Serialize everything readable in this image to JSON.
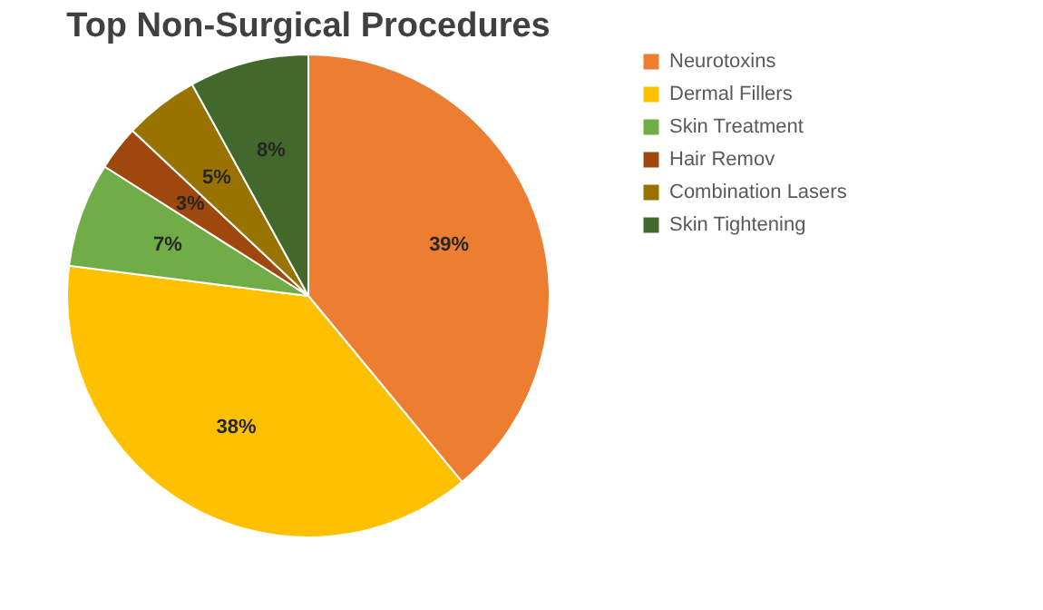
{
  "chart_data": {
    "type": "pie",
    "title": "Top Non-Surgical Procedures",
    "categories": [
      "Neurotoxins",
      "Dermal Fillers",
      "Skin Treatment",
      "Hair Remov",
      "Combination Lasers",
      "Skin Tightening"
    ],
    "values": [
      39,
      38,
      7,
      3,
      5,
      8
    ],
    "colors": [
      "#ed7d31",
      "#ffc000",
      "#70ad47",
      "#9e480e",
      "#997300",
      "#43682b"
    ],
    "value_labels": [
      "39%",
      "38%",
      "7%",
      "3%",
      "5%",
      "8%"
    ],
    "legend": "right"
  }
}
